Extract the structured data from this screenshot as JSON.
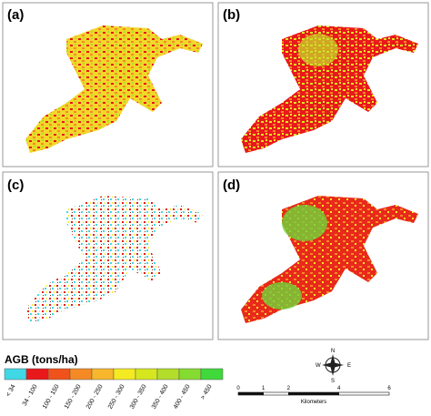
{
  "panels": [
    {
      "label": "(a)"
    },
    {
      "label": "(b)"
    },
    {
      "label": "(c)"
    },
    {
      "label": "(d)"
    }
  ],
  "legend": {
    "title": "AGB (tons/ha)",
    "items": [
      {
        "label": "< 34",
        "color": "#40d8e6"
      },
      {
        "label": "34 - 100",
        "color": "#e8191b"
      },
      {
        "label": "100 - 150",
        "color": "#f0521c"
      },
      {
        "label": "150 - 200",
        "color": "#f58a25"
      },
      {
        "label": "200 - 250",
        "color": "#f7b62c"
      },
      {
        "label": "250 - 300",
        "color": "#f4ea22"
      },
      {
        "label": "300 - 350",
        "color": "#d6e71f"
      },
      {
        "label": "350 - 400",
        "color": "#b2dd2a"
      },
      {
        "label": "400 - 450",
        "color": "#86db31"
      },
      {
        "label": "> 450",
        "color": "#3fd93c"
      }
    ]
  },
  "compass": {
    "n": "N",
    "s": "S",
    "e": "E",
    "w": "W"
  },
  "scale_bar": {
    "ticks": [
      0,
      1,
      2,
      4,
      6
    ],
    "unit": "Kilometers"
  }
}
